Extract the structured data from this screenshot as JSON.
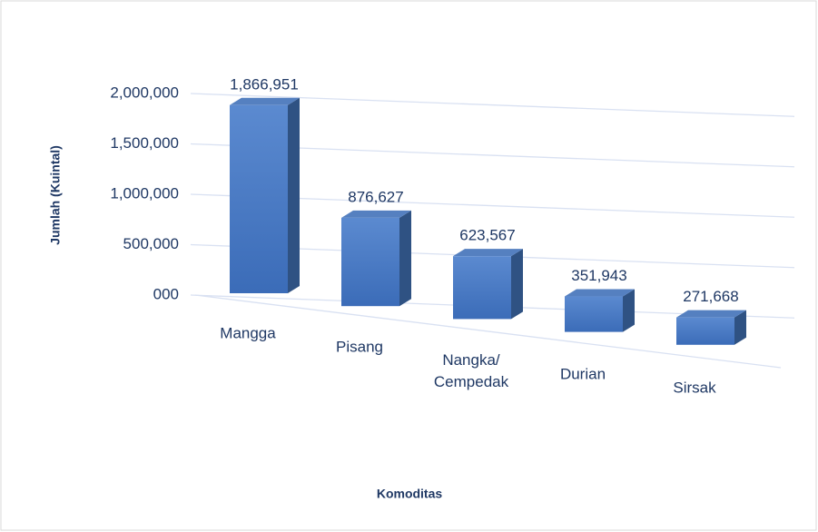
{
  "chart_data": {
    "type": "bar3d",
    "categories": [
      "Mangga",
      "Pisang",
      "Nangka/ Cempedak",
      "Durian",
      "Sirsak"
    ],
    "values": [
      1866951,
      876627,
      623567,
      351943,
      271668
    ],
    "value_labels": [
      "1,866,951",
      "876,627",
      "623,567",
      "351,943",
      "271,668"
    ],
    "color": "#4a7dc8",
    "ylim": [
      0,
      2000000
    ],
    "yticks": [
      {
        "value": 0,
        "label": "000"
      },
      {
        "value": 500000,
        "label": "500,000"
      },
      {
        "value": 1000000,
        "label": "1,000,000"
      },
      {
        "value": 1500000,
        "label": "1,500,000"
      },
      {
        "value": 2000000,
        "label": "2,000,000"
      }
    ],
    "grid": true,
    "y_label": "Jumlah (Kuintal)",
    "x_label": "Komoditas"
  }
}
